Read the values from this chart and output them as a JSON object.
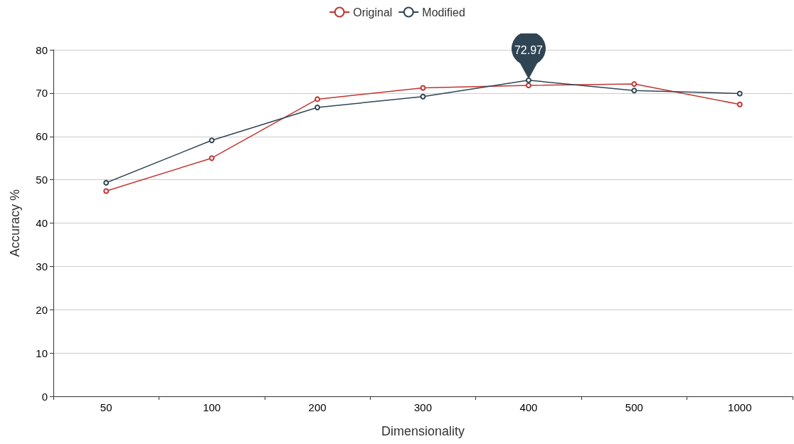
{
  "chart_data": {
    "type": "line",
    "xlabel": "Dimensionality",
    "ylabel": "Accuracy %",
    "categories": [
      "50",
      "100",
      "200",
      "300",
      "400",
      "500",
      "1000"
    ],
    "series": [
      {
        "name": "Original",
        "color": "#c23531",
        "values": [
          47.4,
          55.0,
          68.6,
          71.2,
          71.8,
          72.1,
          67.4
        ]
      },
      {
        "name": "Modified",
        "color": "#2f4554",
        "values": [
          49.3,
          59.1,
          66.7,
          69.2,
          72.97,
          70.6,
          69.9
        ]
      }
    ],
    "annotations": [
      {
        "text": "72.97",
        "x": "400",
        "y": 72.97
      }
    ],
    "ylim": [
      0,
      80
    ],
    "yticks": [
      0,
      10,
      20,
      30,
      40,
      50,
      60,
      70,
      80
    ],
    "grid": "y",
    "legend": "top",
    "marker": "circle",
    "line_style": "solid"
  }
}
